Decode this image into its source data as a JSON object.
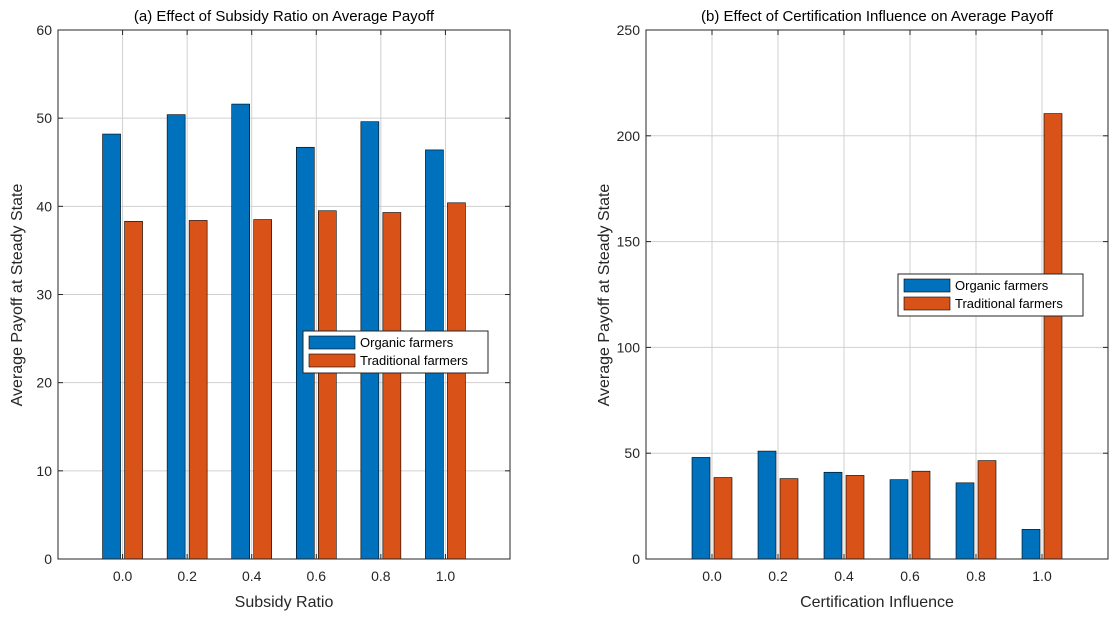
{
  "colors": {
    "organic": "#0072BD",
    "traditional": "#D95319",
    "axis": "#262626",
    "grid": "#D0D0D0"
  },
  "chart_data": [
    {
      "type": "bar",
      "title": "(a) Effect of Subsidy Ratio on Average Payoff",
      "xlabel": "Subsidy Ratio",
      "ylabel": "Average Payoff at Steady State",
      "categories": [
        "0.0",
        "0.2",
        "0.4",
        "0.6",
        "0.8",
        "1.0"
      ],
      "ylim": [
        0,
        60
      ],
      "yticks": [
        0,
        10,
        20,
        30,
        40,
        50,
        60
      ],
      "grid": true,
      "legend_position": "center-right",
      "series": [
        {
          "name": "Organic farmers",
          "values": [
            48.2,
            50.4,
            51.6,
            46.7,
            49.6,
            46.4
          ]
        },
        {
          "name": "Traditional farmers",
          "values": [
            38.3,
            38.4,
            38.5,
            39.5,
            39.3,
            40.4
          ]
        }
      ]
    },
    {
      "type": "bar",
      "title": "(b) Effect of Certification Influence on Average Payoff",
      "xlabel": "Certification Influence",
      "ylabel": "Average Payoff at Steady State",
      "categories": [
        "0.0",
        "0.2",
        "0.4",
        "0.6",
        "0.8",
        "1.0"
      ],
      "ylim": [
        0,
        250
      ],
      "yticks": [
        0,
        50,
        100,
        150,
        200,
        250
      ],
      "grid": true,
      "legend_position": "upper-right",
      "series": [
        {
          "name": "Organic farmers",
          "values": [
            48.0,
            51.0,
            41.0,
            37.5,
            36.0,
            14.0
          ]
        },
        {
          "name": "Traditional farmers",
          "values": [
            38.5,
            38.0,
            39.5,
            41.5,
            46.5,
            210.5
          ]
        }
      ]
    }
  ]
}
